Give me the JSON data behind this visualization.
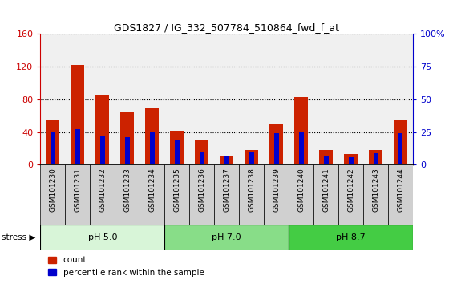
{
  "title": "GDS1827 / IG_332_507784_510864_fwd_f_at",
  "samples": [
    "GSM101230",
    "GSM101231",
    "GSM101232",
    "GSM101233",
    "GSM101234",
    "GSM101235",
    "GSM101236",
    "GSM101237",
    "GSM101238",
    "GSM101239",
    "GSM101240",
    "GSM101241",
    "GSM101242",
    "GSM101243",
    "GSM101244"
  ],
  "count_values": [
    55,
    122,
    85,
    65,
    70,
    42,
    30,
    10,
    18,
    50,
    83,
    18,
    13,
    18,
    55
  ],
  "percentile_values": [
    25,
    27,
    22,
    21,
    25,
    19,
    10,
    7,
    10,
    24,
    25,
    7,
    6,
    9,
    24
  ],
  "groups": [
    {
      "label": "pH 5.0",
      "start": 0,
      "end": 5,
      "color": "#d8f5d8"
    },
    {
      "label": "pH 7.0",
      "start": 5,
      "end": 10,
      "color": "#88dd88"
    },
    {
      "label": "pH 8.7",
      "start": 10,
      "end": 15,
      "color": "#44cc44"
    }
  ],
  "stress_label": "stress",
  "left_axis_color": "#cc0000",
  "right_axis_color": "#0000cc",
  "ylim_left": [
    0,
    160
  ],
  "ylim_right": [
    0,
    100
  ],
  "left_yticks": [
    0,
    40,
    80,
    120,
    160
  ],
  "right_yticks": [
    0,
    25,
    50,
    75,
    100
  ],
  "right_yticklabels": [
    "0",
    "25",
    "50",
    "75",
    "100%"
  ],
  "bar_color_red": "#cc2200",
  "bar_color_blue": "#0000cc",
  "grid_color": "black",
  "plot_bg_color": "#f0f0f0",
  "tick_bg_color": "#d0d0d0",
  "red_bar_width": 0.55,
  "blue_bar_width": 0.18
}
